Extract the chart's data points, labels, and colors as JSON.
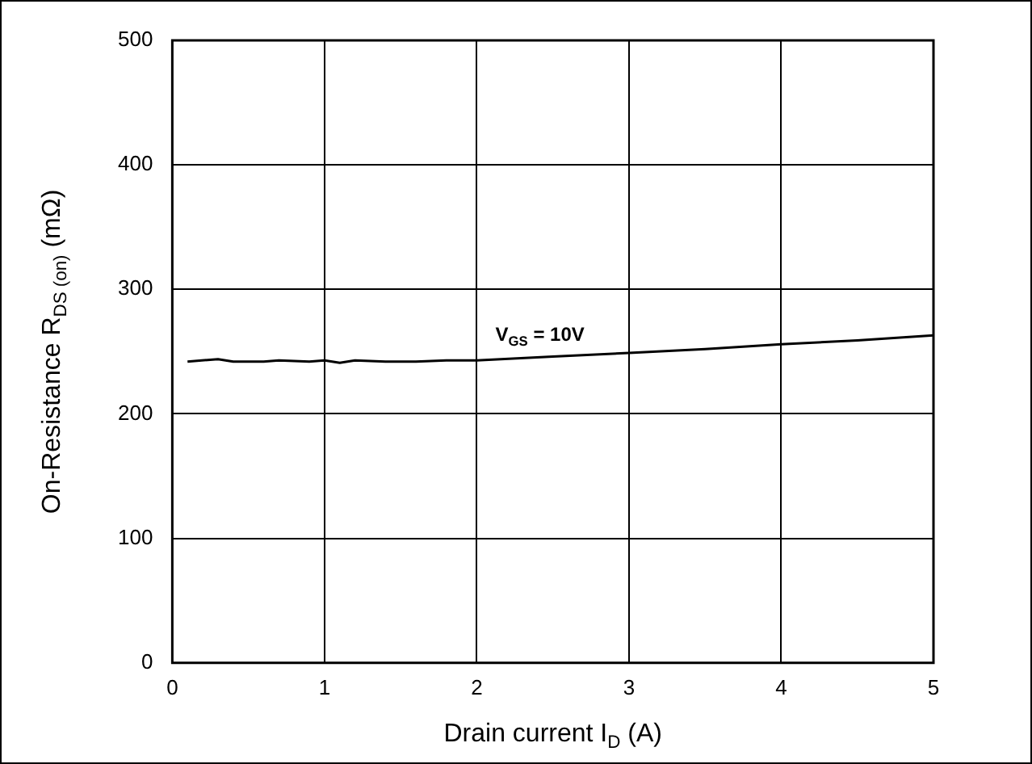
{
  "chart_data": {
    "type": "line",
    "xlabel": "Drain current I$_{D}$ (A)",
    "ylabel": "On-Resistance R$_{DS (on)}$ (mΩ)",
    "x": [
      0.1,
      0.3,
      0.4,
      0.6,
      0.7,
      0.9,
      1.0,
      1.1,
      1.2,
      1.4,
      1.6,
      1.8,
      2.0,
      2.5,
      3.0,
      3.5,
      4.0,
      4.5,
      5.0
    ],
    "series": [
      {
        "color": "#000000",
        "values": [
          242,
          244,
          242,
          242,
          243,
          242,
          243,
          241,
          243,
          242,
          242,
          243,
          243,
          246,
          249,
          252,
          256,
          259,
          263
        ]
      }
    ],
    "xlim": [
      0,
      5
    ],
    "xticks": [
      0,
      1,
      2,
      3,
      4,
      5
    ],
    "ylim": [
      0,
      500
    ],
    "yticks": [
      0,
      100,
      200,
      300,
      400,
      500
    ],
    "annotations": [
      {
        "text": "V$_{GS}$ = 10V",
        "x": 2.5,
        "y": 246
      }
    ],
    "grid": true,
    "legend": false,
    "marker": "none",
    "line_style": "solid"
  }
}
